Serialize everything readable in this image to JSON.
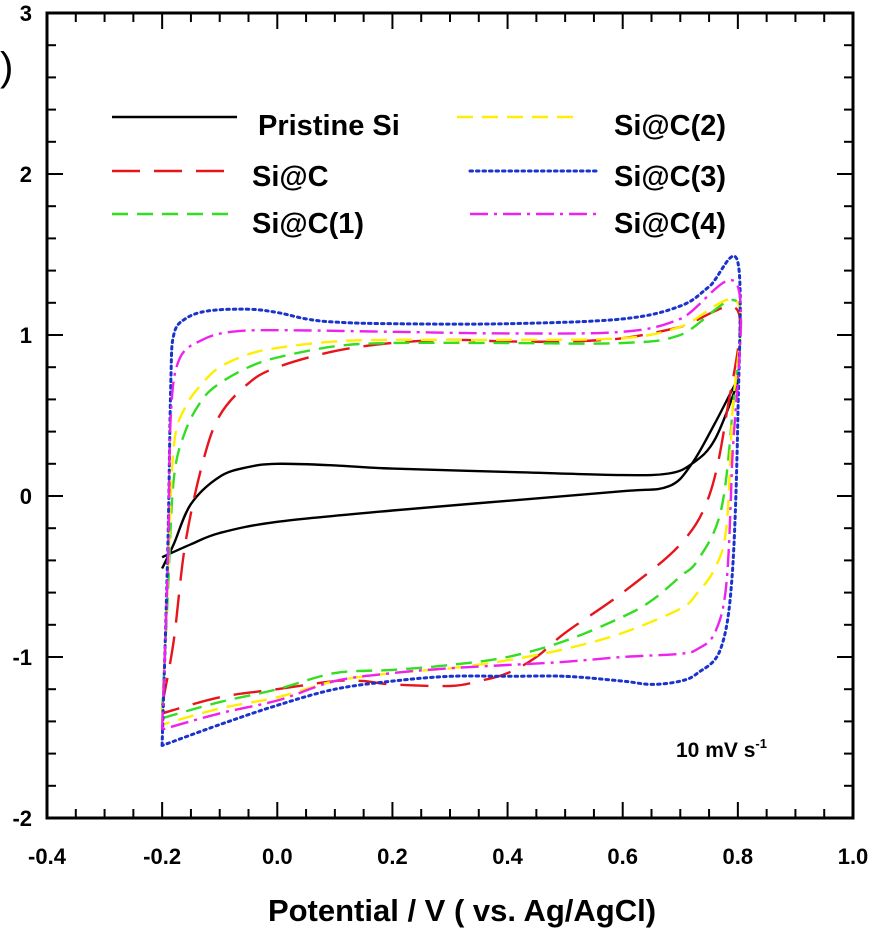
{
  "panel_label": ")",
  "chart_data": {
    "type": "line",
    "title": "",
    "xlabel": "Potential / V ( vs. Ag/AgCl)",
    "ylabel": "",
    "xlim": [
      -0.4,
      1.0
    ],
    "ylim": [
      -2,
      3
    ],
    "x_ticks": [
      "-0.4",
      "-0.2",
      "0.0",
      "0.2",
      "0.4",
      "0.6",
      "0.8",
      "1.0"
    ],
    "y_ticks": [
      "-2",
      "-1",
      "0",
      "1",
      "2",
      "3"
    ],
    "annotation": {
      "text": "10 mV s",
      "superscript": "-1"
    },
    "legend_placement": "top",
    "series": [
      {
        "name": "Pristine Si",
        "color": "#000000",
        "dash": "solid",
        "anodic": [
          [
            -0.2,
            -0.45
          ],
          [
            -0.18,
            -0.3
          ],
          [
            -0.15,
            -0.05
          ],
          [
            -0.1,
            0.12
          ],
          [
            -0.05,
            0.18
          ],
          [
            0.0,
            0.2
          ],
          [
            0.1,
            0.19
          ],
          [
            0.2,
            0.17
          ],
          [
            0.4,
            0.15
          ],
          [
            0.6,
            0.13
          ],
          [
            0.68,
            0.14
          ],
          [
            0.72,
            0.2
          ],
          [
            0.76,
            0.35
          ],
          [
            0.8,
            0.72
          ]
        ],
        "cathodic": [
          [
            0.8,
            0.7
          ],
          [
            0.76,
            0.45
          ],
          [
            0.72,
            0.2
          ],
          [
            0.68,
            0.06
          ],
          [
            0.6,
            0.03
          ],
          [
            0.4,
            -0.03
          ],
          [
            0.2,
            -0.09
          ],
          [
            0.0,
            -0.16
          ],
          [
            -0.1,
            -0.23
          ],
          [
            -0.15,
            -0.3
          ],
          [
            -0.2,
            -0.38
          ]
        ]
      },
      {
        "name": "Si@C",
        "color": "#e8141c",
        "dash": "long",
        "anodic": [
          [
            -0.2,
            -1.3
          ],
          [
            -0.18,
            -0.9
          ],
          [
            -0.16,
            -0.3
          ],
          [
            -0.13,
            0.2
          ],
          [
            -0.1,
            0.5
          ],
          [
            -0.05,
            0.7
          ],
          [
            0.0,
            0.8
          ],
          [
            0.1,
            0.9
          ],
          [
            0.2,
            0.95
          ],
          [
            0.3,
            0.97
          ],
          [
            0.4,
            0.96
          ],
          [
            0.5,
            0.96
          ],
          [
            0.6,
            0.98
          ],
          [
            0.7,
            1.05
          ],
          [
            0.8,
            1.15
          ]
        ],
        "cathodic": [
          [
            0.8,
            1.0
          ],
          [
            0.78,
            0.5
          ],
          [
            0.75,
            0.0
          ],
          [
            0.7,
            -0.3
          ],
          [
            0.6,
            -0.6
          ],
          [
            0.5,
            -0.85
          ],
          [
            0.45,
            -1.0
          ],
          [
            0.4,
            -1.1
          ],
          [
            0.35,
            -1.15
          ],
          [
            0.3,
            -1.18
          ],
          [
            0.2,
            -1.17
          ],
          [
            0.15,
            -1.15
          ],
          [
            0.1,
            -1.15
          ],
          [
            0.0,
            -1.2
          ],
          [
            -0.1,
            -1.25
          ],
          [
            -0.2,
            -1.35
          ]
        ]
      },
      {
        "name": "Si@C(1)",
        "color": "#33dd22",
        "dash": "medium",
        "anodic": [
          [
            -0.2,
            -1.35
          ],
          [
            -0.19,
            -0.6
          ],
          [
            -0.18,
            0.1
          ],
          [
            -0.16,
            0.4
          ],
          [
            -0.13,
            0.6
          ],
          [
            -0.1,
            0.7
          ],
          [
            -0.05,
            0.8
          ],
          [
            0.0,
            0.86
          ],
          [
            0.1,
            0.93
          ],
          [
            0.2,
            0.95
          ],
          [
            0.4,
            0.95
          ],
          [
            0.6,
            0.95
          ],
          [
            0.7,
            1.0
          ],
          [
            0.8,
            1.2
          ]
        ],
        "cathodic": [
          [
            0.8,
            1.0
          ],
          [
            0.79,
            0.5
          ],
          [
            0.77,
            -0.1
          ],
          [
            0.73,
            -0.4
          ],
          [
            0.7,
            -0.5
          ],
          [
            0.65,
            -0.65
          ],
          [
            0.6,
            -0.75
          ],
          [
            0.5,
            -0.9
          ],
          [
            0.4,
            -1.0
          ],
          [
            0.3,
            -1.05
          ],
          [
            0.2,
            -1.08
          ],
          [
            0.1,
            -1.1
          ],
          [
            0.0,
            -1.2
          ],
          [
            -0.1,
            -1.28
          ],
          [
            -0.2,
            -1.38
          ]
        ]
      },
      {
        "name": "Si@C(2)",
        "color": "#ffee00",
        "dash": "medium",
        "anodic": [
          [
            -0.2,
            -1.4
          ],
          [
            -0.19,
            -0.5
          ],
          [
            -0.18,
            0.3
          ],
          [
            -0.16,
            0.55
          ],
          [
            -0.13,
            0.7
          ],
          [
            -0.1,
            0.8
          ],
          [
            -0.05,
            0.88
          ],
          [
            0.0,
            0.92
          ],
          [
            0.1,
            0.96
          ],
          [
            0.2,
            0.97
          ],
          [
            0.4,
            0.97
          ],
          [
            0.6,
            0.98
          ],
          [
            0.7,
            1.05
          ],
          [
            0.8,
            1.2
          ]
        ],
        "cathodic": [
          [
            0.8,
            1.1
          ],
          [
            0.79,
            0.5
          ],
          [
            0.78,
            -0.2
          ],
          [
            0.76,
            -0.45
          ],
          [
            0.73,
            -0.6
          ],
          [
            0.7,
            -0.7
          ],
          [
            0.6,
            -0.85
          ],
          [
            0.5,
            -0.95
          ],
          [
            0.4,
            -1.02
          ],
          [
            0.3,
            -1.07
          ],
          [
            0.2,
            -1.1
          ],
          [
            0.1,
            -1.15
          ],
          [
            0.0,
            -1.25
          ],
          [
            -0.1,
            -1.32
          ],
          [
            -0.2,
            -1.42
          ]
        ]
      },
      {
        "name": "Si@C(3)",
        "color": "#1a33cc",
        "dash": "dotted",
        "anodic": [
          [
            -0.2,
            -1.55
          ],
          [
            -0.19,
            -0.3
          ],
          [
            -0.185,
            0.7
          ],
          [
            -0.18,
            1.0
          ],
          [
            -0.16,
            1.1
          ],
          [
            -0.12,
            1.15
          ],
          [
            -0.05,
            1.16
          ],
          [
            0.0,
            1.14
          ],
          [
            0.05,
            1.1
          ],
          [
            0.1,
            1.08
          ],
          [
            0.2,
            1.07
          ],
          [
            0.4,
            1.07
          ],
          [
            0.6,
            1.1
          ],
          [
            0.7,
            1.18
          ],
          [
            0.75,
            1.3
          ],
          [
            0.8,
            1.45
          ]
        ],
        "cathodic": [
          [
            0.8,
            1.4
          ],
          [
            0.8,
            0.5
          ],
          [
            0.79,
            -0.5
          ],
          [
            0.77,
            -0.95
          ],
          [
            0.73,
            -1.1
          ],
          [
            0.7,
            -1.15
          ],
          [
            0.65,
            -1.17
          ],
          [
            0.6,
            -1.15
          ],
          [
            0.5,
            -1.12
          ],
          [
            0.4,
            -1.12
          ],
          [
            0.3,
            -1.12
          ],
          [
            0.2,
            -1.15
          ],
          [
            0.1,
            -1.2
          ],
          [
            0.0,
            -1.3
          ],
          [
            -0.1,
            -1.42
          ],
          [
            -0.2,
            -1.55
          ]
        ]
      },
      {
        "name": "Si@C(4)",
        "color": "#ee22ee",
        "dash": "dashdot",
        "anodic": [
          [
            -0.2,
            -1.45
          ],
          [
            -0.19,
            -0.4
          ],
          [
            -0.185,
            0.5
          ],
          [
            -0.17,
            0.85
          ],
          [
            -0.13,
            0.97
          ],
          [
            -0.08,
            1.02
          ],
          [
            0.0,
            1.03
          ],
          [
            0.2,
            1.02
          ],
          [
            0.4,
            1.01
          ],
          [
            0.6,
            1.02
          ],
          [
            0.7,
            1.1
          ],
          [
            0.8,
            1.3
          ]
        ],
        "cathodic": [
          [
            0.8,
            1.2
          ],
          [
            0.79,
            0.2
          ],
          [
            0.78,
            -0.55
          ],
          [
            0.76,
            -0.85
          ],
          [
            0.73,
            -0.95
          ],
          [
            0.7,
            -0.98
          ],
          [
            0.6,
            -1.0
          ],
          [
            0.5,
            -1.03
          ],
          [
            0.4,
            -1.05
          ],
          [
            0.3,
            -1.07
          ],
          [
            0.2,
            -1.1
          ],
          [
            0.1,
            -1.15
          ],
          [
            0.0,
            -1.27
          ],
          [
            -0.1,
            -1.35
          ],
          [
            -0.2,
            -1.45
          ]
        ]
      }
    ]
  }
}
